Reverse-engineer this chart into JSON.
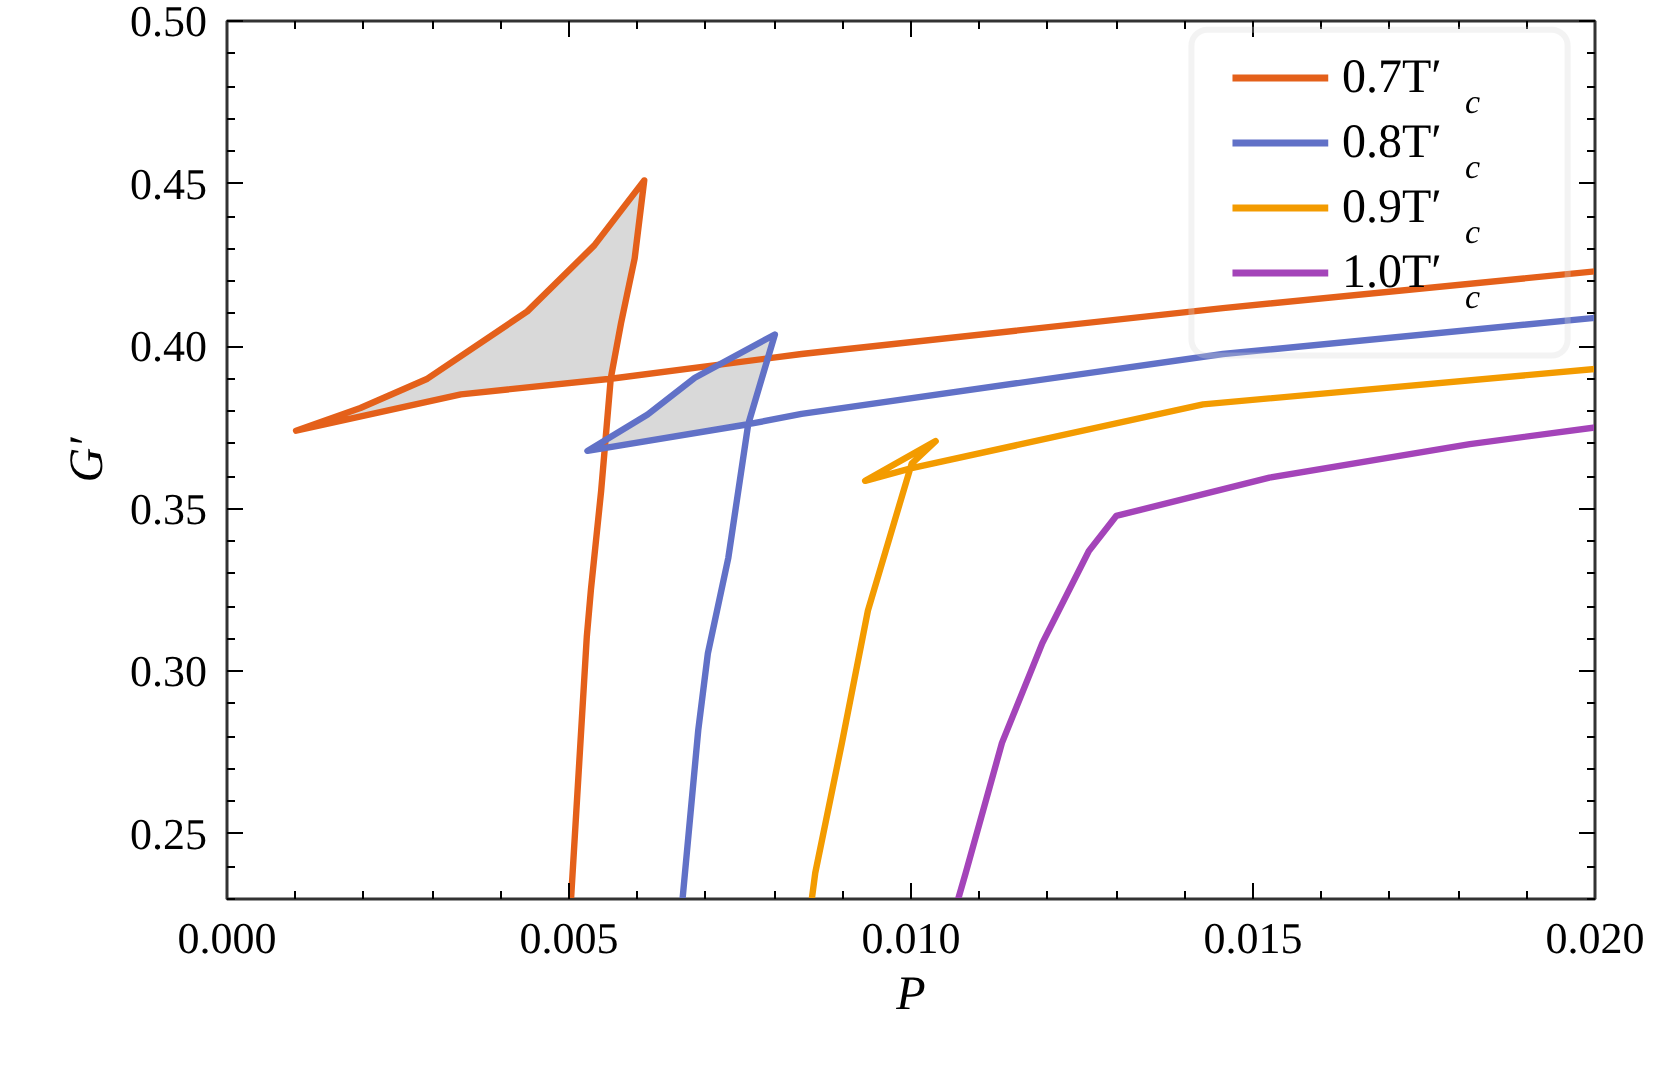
{
  "chart_data": {
    "type": "line",
    "xlabel": "P",
    "ylabel": "G′",
    "xlim": [
      0,
      0.02
    ],
    "ylim": [
      0.23,
      0.5
    ],
    "xticks": [
      {
        "value": 0,
        "label": "0.000"
      },
      {
        "value": 0.005,
        "label": "0.005"
      },
      {
        "value": 0.01,
        "label": "0.010"
      },
      {
        "value": 0.015,
        "label": "0.015"
      },
      {
        "value": 0.02,
        "label": "0.020"
      }
    ],
    "yticks": [
      0.25,
      {
        "value": 0.3,
        "label": "0.30"
      },
      0.35,
      {
        "value": 0.4,
        "label": "0.40"
      },
      0.45,
      {
        "value": 0.5,
        "label": "0.50"
      }
    ],
    "grid": false,
    "legend": "top right",
    "line_style": "solid",
    "series": [
      {
        "type": "area",
        "color": "#d9d9d9",
        "x": [
          0.00101,
          0.00195,
          0.00293,
          0.00439,
          0.00537,
          0.0061,
          0.00596,
          0.00576,
          0.00561,
          0.00342,
          0.00101
        ],
        "values": [
          0.374,
          0.381,
          0.39,
          0.4107,
          0.431,
          0.451,
          0.427,
          0.407,
          0.39,
          0.3852,
          0.374
        ]
      },
      {
        "type": "area",
        "color": "#d9d9d9",
        "x": [
          0.00527,
          0.00615,
          0.00684,
          0.00801,
          0.00762,
          0.00527
        ],
        "values": [
          0.3678,
          0.379,
          0.3903,
          0.4036,
          0.376,
          0.3678
        ]
      },
      {
        "name": "0.7T′$_{c}$",
        "color": "#e4601a",
        "x": [
          0.00503,
          0.00526,
          0.00532,
          0.00547,
          0.00561,
          0.00576,
          0.00596,
          0.0061,
          0.00537,
          0.00439,
          0.00293,
          0.00195,
          0.00101,
          0.00342,
          0.00561,
          0.0084,
          0.01456,
          0.02
        ],
        "values": [
          0.23,
          0.3106,
          0.325,
          0.3555,
          0.39,
          0.407,
          0.427,
          0.451,
          0.431,
          0.4107,
          0.39,
          0.381,
          0.374,
          0.3852,
          0.39,
          0.3976,
          0.4117,
          0.423
        ]
      },
      {
        "name": "0.8T′$_{c}$",
        "color": "#6171c7",
        "x": [
          0.00666,
          0.00689,
          0.00703,
          0.00733,
          0.00762,
          0.00801,
          0.00684,
          0.00615,
          0.00527,
          0.00762,
          0.0084,
          0.01456,
          0.02
        ],
        "values": [
          0.23,
          0.282,
          0.3055,
          0.335,
          0.376,
          0.4036,
          0.3903,
          0.379,
          0.3678,
          0.376,
          0.3792,
          0.3976,
          0.4087
        ]
      },
      {
        "name": "0.9T′$_{c}$",
        "color": "#f39b00",
        "x": [
          0.00855,
          0.0086,
          0.00899,
          0.00937,
          0.01001,
          0.01036,
          0.00933,
          0.01001,
          0.01427,
          0.02
        ],
        "values": [
          0.23,
          0.238,
          0.278,
          0.3187,
          0.3639,
          0.3708,
          0.3586,
          0.3625,
          0.3821,
          0.393
        ]
      },
      {
        "name": "1.0T′$_{c}$",
        "color": "#a444b9",
        "x": [
          0.01069,
          0.0108,
          0.01133,
          0.01192,
          0.0126,
          0.013,
          0.01524,
          0.01817,
          0.02
        ],
        "values": [
          0.23,
          0.238,
          0.278,
          0.3087,
          0.337,
          0.3478,
          0.3596,
          0.3699,
          0.375
        ]
      }
    ]
  }
}
